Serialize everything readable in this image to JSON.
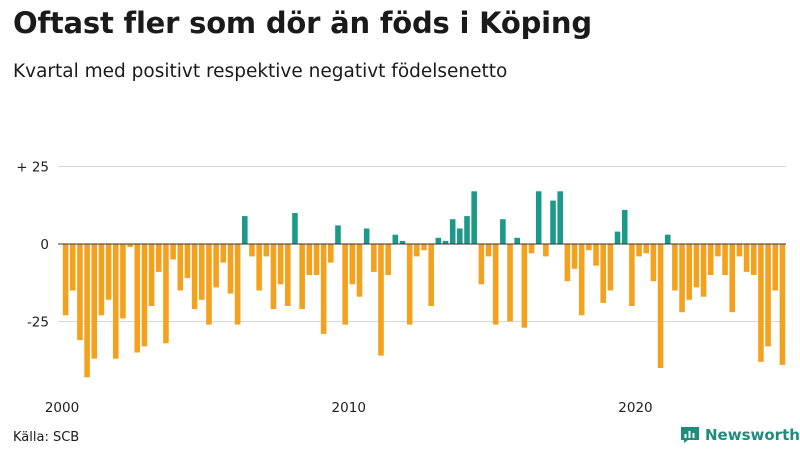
{
  "header": {
    "title": "Oftast fler som dör än föds i Köping",
    "subtitle": "Kvartal med positivt respektive negativt födelsenetto"
  },
  "footer": {
    "source": "Källa: SCB",
    "brand": "Newsworthy"
  },
  "colors": {
    "positive": "#1b9a8a",
    "negative": "#f4a11d",
    "brand": "#1f8c7e"
  },
  "chart_data": {
    "type": "bar",
    "title": "Oftast fler som dör än föds i Köping",
    "subtitle": "Kvartal med positivt respektive negativt födelsenetto",
    "xlabel": "",
    "ylabel": "",
    "ylim": [
      -45,
      30
    ],
    "y_ticks": [
      {
        "value": 25,
        "label": "+ 25"
      },
      {
        "value": 0,
        "label": "0"
      },
      {
        "value": -25,
        "label": "-25"
      }
    ],
    "x_ticks": [
      {
        "index": 0,
        "label": "2000"
      },
      {
        "index": 40,
        "label": "2010"
      },
      {
        "index": 80,
        "label": "2020"
      }
    ],
    "start_period": "2000 Q1",
    "values": [
      -23,
      -15,
      -31,
      -43,
      -37,
      -23,
      -18,
      -37,
      -24,
      -1,
      -35,
      -33,
      -20,
      -9,
      -32,
      -5,
      -15,
      -11,
      -21,
      -18,
      -26,
      -14,
      -6,
      -16,
      -26,
      9,
      -4,
      -15,
      -4,
      -21,
      -13,
      -20,
      10,
      -21,
      -10,
      -10,
      -29,
      -6,
      6,
      -26,
      -13,
      -17,
      5,
      -9,
      -36,
      -10,
      3,
      1,
      -26,
      -4,
      -2,
      -20,
      2,
      1,
      8,
      5,
      9,
      17,
      -13,
      -4,
      -26,
      8,
      -25,
      2,
      -27,
      -3,
      17,
      -4,
      14,
      17,
      -12,
      -8,
      -23,
      -2,
      -7,
      -19,
      -15,
      4,
      11,
      -20,
      -4,
      -3,
      -12,
      -40,
      3,
      -15,
      -22,
      -18,
      -14,
      -17,
      -10,
      -4,
      -10,
      -22,
      -4,
      -9,
      -10,
      -38,
      -33,
      -15,
      -39
    ]
  }
}
